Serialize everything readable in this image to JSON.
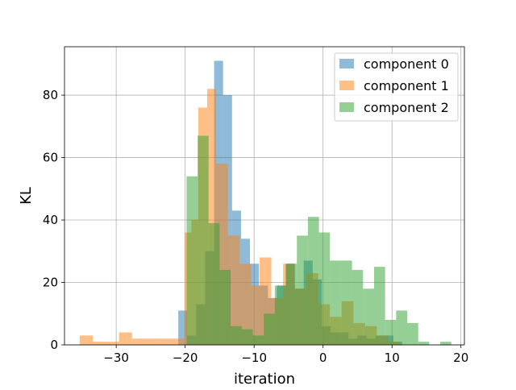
{
  "chart_data": {
    "type": "histogram",
    "title": "",
    "xlabel": "iteration",
    "ylabel": "KL",
    "xlim": [
      -37.5,
      20.5
    ],
    "ylim": [
      0,
      95.5
    ],
    "xticks": [
      -30,
      -20,
      -10,
      0,
      10,
      20
    ],
    "yticks": [
      0,
      20,
      40,
      60,
      80
    ],
    "grid": true,
    "legend_position": "top-right",
    "series": [
      {
        "name": "component 0",
        "color": "#1f77b4",
        "alpha": 0.5,
        "bins": [
          {
            "x0": -21.0,
            "x1": -19.7,
            "count": 11
          },
          {
            "x0": -19.7,
            "x1": -18.4,
            "count": 3
          },
          {
            "x0": -18.4,
            "x1": -17.1,
            "count": 13
          },
          {
            "x0": -17.1,
            "x1": -15.8,
            "count": 30
          },
          {
            "x0": -15.8,
            "x1": -14.5,
            "count": 91
          },
          {
            "x0": -14.5,
            "x1": -13.2,
            "count": 80
          },
          {
            "x0": -13.2,
            "x1": -11.9,
            "count": 43
          },
          {
            "x0": -11.9,
            "x1": -10.6,
            "count": 34
          },
          {
            "x0": -10.6,
            "x1": -9.3,
            "count": 26
          },
          {
            "x0": -9.3,
            "x1": -8.0,
            "count": 19
          },
          {
            "x0": -8.0,
            "x1": -6.7,
            "count": 15
          },
          {
            "x0": -6.7,
            "x1": -5.4,
            "count": 19
          },
          {
            "x0": -5.4,
            "x1": -4.1,
            "count": 26
          },
          {
            "x0": -4.1,
            "x1": -2.8,
            "count": 18
          },
          {
            "x0": -2.8,
            "x1": -1.5,
            "count": 27
          },
          {
            "x0": -1.5,
            "x1": -0.2,
            "count": 21
          },
          {
            "x0": -0.2,
            "x1": 1.1,
            "count": 6
          },
          {
            "x0": 1.1,
            "x1": 2.4,
            "count": 4
          },
          {
            "x0": 2.4,
            "x1": 3.7,
            "count": 4
          },
          {
            "x0": 3.7,
            "x1": 5.0,
            "count": 2
          },
          {
            "x0": 5.0,
            "x1": 6.3,
            "count": 3
          },
          {
            "x0": 6.3,
            "x1": 7.6,
            "count": 2
          },
          {
            "x0": 7.6,
            "x1": 8.9,
            "count": 3
          },
          {
            "x0": 8.9,
            "x1": 10.2,
            "count": 3
          },
          {
            "x0": 10.2,
            "x1": 11.5,
            "count": 1
          }
        ]
      },
      {
        "name": "component 1",
        "color": "#ff7f0e",
        "alpha": 0.5,
        "bins": [
          {
            "x0": -35.3,
            "x1": -33.4,
            "count": 3
          },
          {
            "x0": -33.4,
            "x1": -31.5,
            "count": 1
          },
          {
            "x0": -31.5,
            "x1": -29.6,
            "count": 1
          },
          {
            "x0": -29.6,
            "x1": -27.7,
            "count": 4
          },
          {
            "x0": -27.7,
            "x1": -25.8,
            "count": 2
          },
          {
            "x0": -25.8,
            "x1": -23.9,
            "count": 2
          },
          {
            "x0": -23.9,
            "x1": -22.0,
            "count": 2
          },
          {
            "x0": -22.0,
            "x1": -20.1,
            "count": 2
          },
          {
            "x0": -20.1,
            "x1": -19.1,
            "count": 36
          },
          {
            "x0": -19.1,
            "x1": -18.1,
            "count": 40
          },
          {
            "x0": -18.1,
            "x1": -16.8,
            "count": 76
          },
          {
            "x0": -16.8,
            "x1": -15.5,
            "count": 82
          },
          {
            "x0": -15.5,
            "x1": -13.8,
            "count": 58
          },
          {
            "x0": -13.8,
            "x1": -12.1,
            "count": 35
          },
          {
            "x0": -12.1,
            "x1": -10.4,
            "count": 26
          },
          {
            "x0": -10.4,
            "x1": -9.2,
            "count": 19
          },
          {
            "x0": -9.2,
            "x1": -7.5,
            "count": 28
          },
          {
            "x0": -7.5,
            "x1": -5.8,
            "count": 15
          },
          {
            "x0": -5.8,
            "x1": -4.1,
            "count": 26
          },
          {
            "x0": -4.1,
            "x1": -2.4,
            "count": 18
          },
          {
            "x0": -2.4,
            "x1": -0.7,
            "count": 23
          },
          {
            "x0": -0.7,
            "x1": 1.0,
            "count": 13
          },
          {
            "x0": 1.0,
            "x1": 2.7,
            "count": 9
          },
          {
            "x0": 2.7,
            "x1": 4.4,
            "count": 14
          },
          {
            "x0": 4.4,
            "x1": 6.1,
            "count": 7
          },
          {
            "x0": 6.1,
            "x1": 7.8,
            "count": 6
          },
          {
            "x0": 7.8,
            "x1": 9.5,
            "count": 3
          },
          {
            "x0": 9.5,
            "x1": 11.2,
            "count": 1
          }
        ]
      },
      {
        "name": "component 2",
        "color": "#2ca02c",
        "alpha": 0.5,
        "bins": [
          {
            "x0": -19.8,
            "x1": -18.2,
            "count": 54
          },
          {
            "x0": -18.2,
            "x1": -16.6,
            "count": 67
          },
          {
            "x0": -16.6,
            "x1": -15.0,
            "count": 39
          },
          {
            "x0": -15.0,
            "x1": -13.4,
            "count": 24
          },
          {
            "x0": -13.4,
            "x1": -11.8,
            "count": 6
          },
          {
            "x0": -11.8,
            "x1": -10.2,
            "count": 5
          },
          {
            "x0": -10.2,
            "x1": -8.6,
            "count": 3
          },
          {
            "x0": -8.6,
            "x1": -7.0,
            "count": 10
          },
          {
            "x0": -7.0,
            "x1": -5.4,
            "count": 19
          },
          {
            "x0": -5.4,
            "x1": -3.8,
            "count": 26
          },
          {
            "x0": -3.8,
            "x1": -2.2,
            "count": 35
          },
          {
            "x0": -2.2,
            "x1": -0.6,
            "count": 41
          },
          {
            "x0": -0.6,
            "x1": 1.0,
            "count": 36
          },
          {
            "x0": 1.0,
            "x1": 2.6,
            "count": 27
          },
          {
            "x0": 2.6,
            "x1": 4.2,
            "count": 27
          },
          {
            "x0": 4.2,
            "x1": 5.8,
            "count": 24
          },
          {
            "x0": 5.8,
            "x1": 7.4,
            "count": 18
          },
          {
            "x0": 7.4,
            "x1": 9.0,
            "count": 25
          },
          {
            "x0": 9.0,
            "x1": 10.6,
            "count": 8
          },
          {
            "x0": 10.6,
            "x1": 12.2,
            "count": 11
          },
          {
            "x0": 12.2,
            "x1": 13.8,
            "count": 7
          },
          {
            "x0": 13.8,
            "x1": 15.4,
            "count": 1
          },
          {
            "x0": 15.4,
            "x1": 17.0,
            "count": 0
          },
          {
            "x0": 17.0,
            "x1": 18.6,
            "count": 1
          }
        ]
      }
    ]
  }
}
